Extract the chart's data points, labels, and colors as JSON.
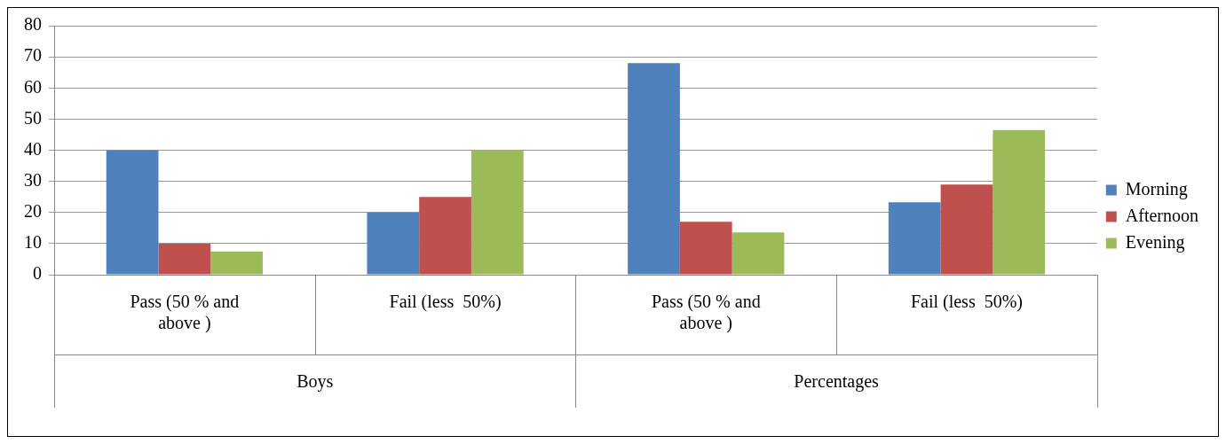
{
  "chart_data": {
    "type": "bar",
    "categories": [
      "Pass (50 % and above )",
      "Fail (less  50%)",
      "Pass (50 % and above )",
      "Fail (less  50%)"
    ],
    "series": [
      {
        "name": "Morning",
        "color": "#4f81bd",
        "values": [
          40,
          20,
          68,
          23.3
        ]
      },
      {
        "name": "Afternoon",
        "color": "#c0504d",
        "values": [
          10,
          25,
          17,
          29
        ]
      },
      {
        "name": "Evening",
        "color": "#9bbb59",
        "values": [
          7.5,
          40,
          13.6,
          46.5
        ]
      }
    ],
    "annotations": [
      "Boys",
      "Percentages"
    ],
    "ylim": [
      0,
      80
    ],
    "yticks": [
      0,
      10,
      20,
      30,
      40,
      50,
      60,
      70,
      80
    ],
    "grid": "y",
    "legend": "right"
  }
}
